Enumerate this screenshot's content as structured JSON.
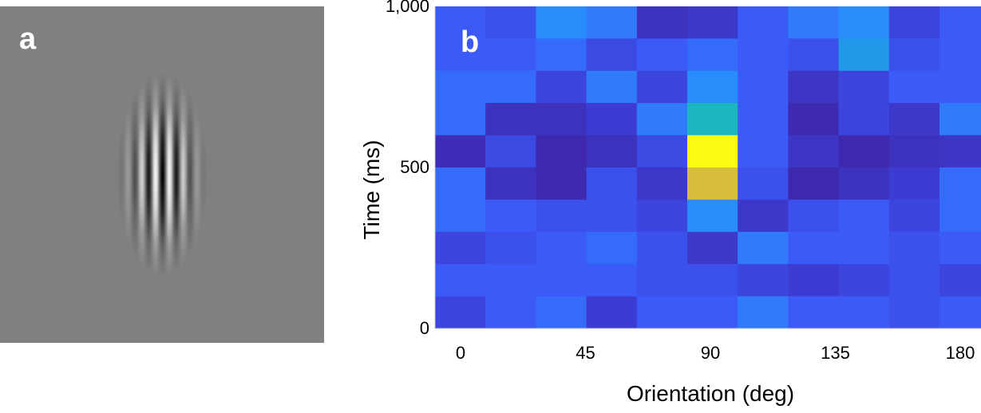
{
  "panels": {
    "a_label": "a",
    "b_label": "b"
  },
  "chart_data": [
    {
      "type": "image",
      "description_label": "a"
    },
    {
      "type": "heatmap",
      "xlabel": "Orientation (deg)",
      "ylabel": "Time (ms)",
      "x_ticks": [
        "0",
        "45",
        "90",
        "135",
        "180"
      ],
      "y_ticks": [
        "0",
        "500",
        "1,000"
      ],
      "xlim": [
        0,
        180
      ],
      "ylim": [
        0,
        1000
      ],
      "n_cols": 11,
      "n_rows": 10,
      "rows_top_to_bottom": [
        [
          0.3,
          0.25,
          0.45,
          0.4,
          0.08,
          0.12,
          0.3,
          0.4,
          0.45,
          0.2,
          0.3
        ],
        [
          0.3,
          0.3,
          0.35,
          0.22,
          0.3,
          0.35,
          0.3,
          0.25,
          0.5,
          0.25,
          0.3
        ],
        [
          0.35,
          0.35,
          0.2,
          0.4,
          0.2,
          0.45,
          0.3,
          0.1,
          0.2,
          0.3,
          0.3
        ],
        [
          0.35,
          0.08,
          0.08,
          0.15,
          0.4,
          0.62,
          0.3,
          0.03,
          0.2,
          0.12,
          0.4
        ],
        [
          0.05,
          0.22,
          0.02,
          0.08,
          0.22,
          1.0,
          0.3,
          0.1,
          0.02,
          0.08,
          0.1
        ],
        [
          0.35,
          0.08,
          0.03,
          0.25,
          0.12,
          0.85,
          0.25,
          0.02,
          0.08,
          0.15,
          0.35
        ],
        [
          0.35,
          0.3,
          0.25,
          0.25,
          0.2,
          0.45,
          0.12,
          0.25,
          0.3,
          0.2,
          0.35
        ],
        [
          0.2,
          0.25,
          0.3,
          0.35,
          0.25,
          0.12,
          0.4,
          0.3,
          0.3,
          0.25,
          0.3
        ],
        [
          0.3,
          0.3,
          0.3,
          0.3,
          0.25,
          0.25,
          0.2,
          0.15,
          0.2,
          0.25,
          0.2
        ],
        [
          0.2,
          0.3,
          0.35,
          0.15,
          0.3,
          0.3,
          0.4,
          0.3,
          0.3,
          0.25,
          0.3
        ]
      ],
      "colormap": "parula"
    }
  ]
}
